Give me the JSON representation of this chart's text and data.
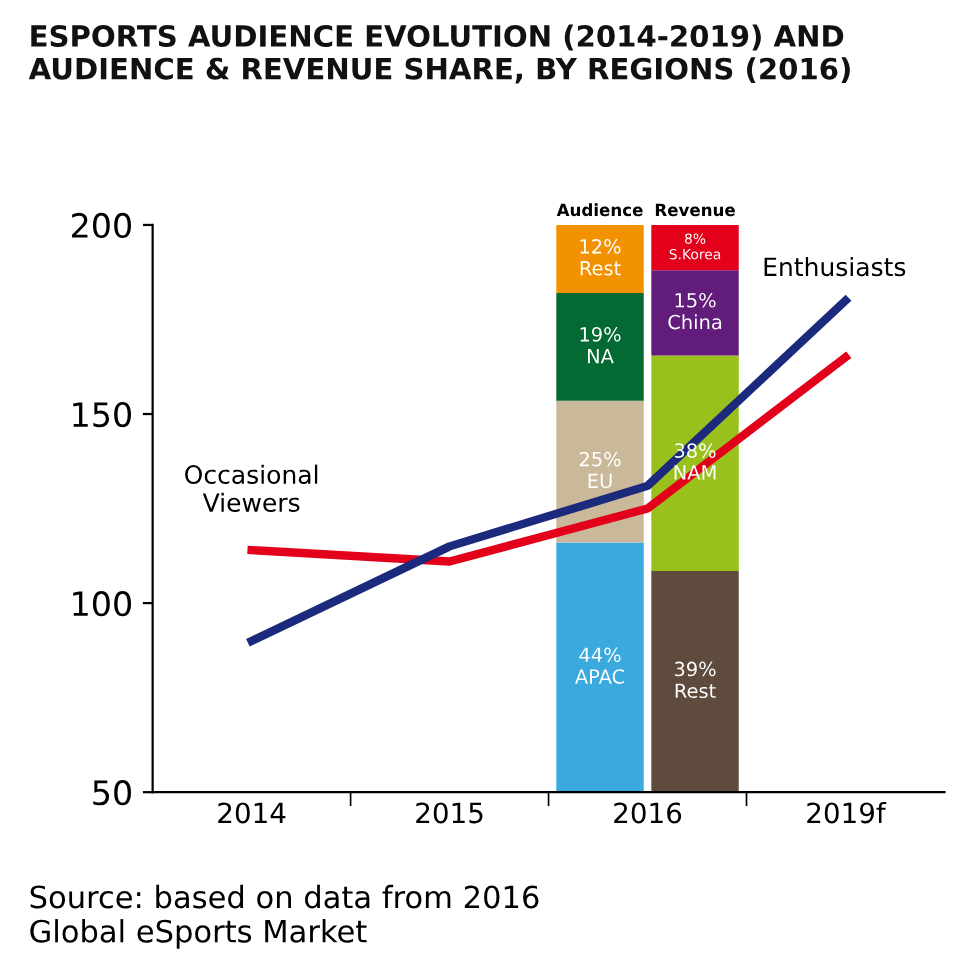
{
  "chart_data": [
    {
      "type": "line",
      "title": "ESPORTS AUDIENCE EVOLUTION (2014-2019) AND\nAUDIENCE & REVENUE SHARE, BY REGIONS (2016)",
      "categories": [
        "2014",
        "2015",
        "2016",
        "2019f"
      ],
      "series": [
        {
          "name": "Occasional Viewers",
          "color": "#e2001a",
          "values": [
            114,
            111,
            125,
            165
          ]
        },
        {
          "name": "Enthusiasts",
          "color": "#1b2a7c",
          "values": [
            90,
            115,
            131,
            180
          ]
        }
      ],
      "ylim": [
        50,
        200
      ],
      "yticks": [
        50,
        100,
        150,
        200
      ],
      "grid": false,
      "legend": false,
      "marker": "none",
      "line_style": "solid",
      "annotations": [
        "Source: based on data from 2016\nGlobal eSports Market"
      ]
    },
    {
      "type": "bar",
      "stacked": true,
      "categories": [
        "Audience",
        "Revenue"
      ],
      "ylim": [
        0,
        100
      ],
      "tick_labels": "x",
      "data_labels": true,
      "series": [
        {
          "colors": [
            "#3aaade",
            "#5e4b3e"
          ],
          "values": [
            44,
            39
          ],
          "value_labels": [
            "44%\nAPAC",
            "39%\nRest"
          ]
        },
        {
          "colors": [
            "#c9b99a",
            "#99c01c"
          ],
          "values": [
            25,
            38
          ],
          "value_labels": [
            "25%\nEU",
            "38%\nNAM"
          ]
        },
        {
          "colors": [
            "#046a34",
            "#621c7c"
          ],
          "values": [
            19,
            15
          ],
          "value_labels": [
            "19%\nNA",
            "15%\nChina"
          ]
        },
        {
          "colors": [
            "#f39200",
            "#e2001a"
          ],
          "values": [
            12,
            8
          ],
          "value_labels": [
            "12%\nRest",
            "8%\nS.Korea"
          ]
        }
      ]
    }
  ]
}
